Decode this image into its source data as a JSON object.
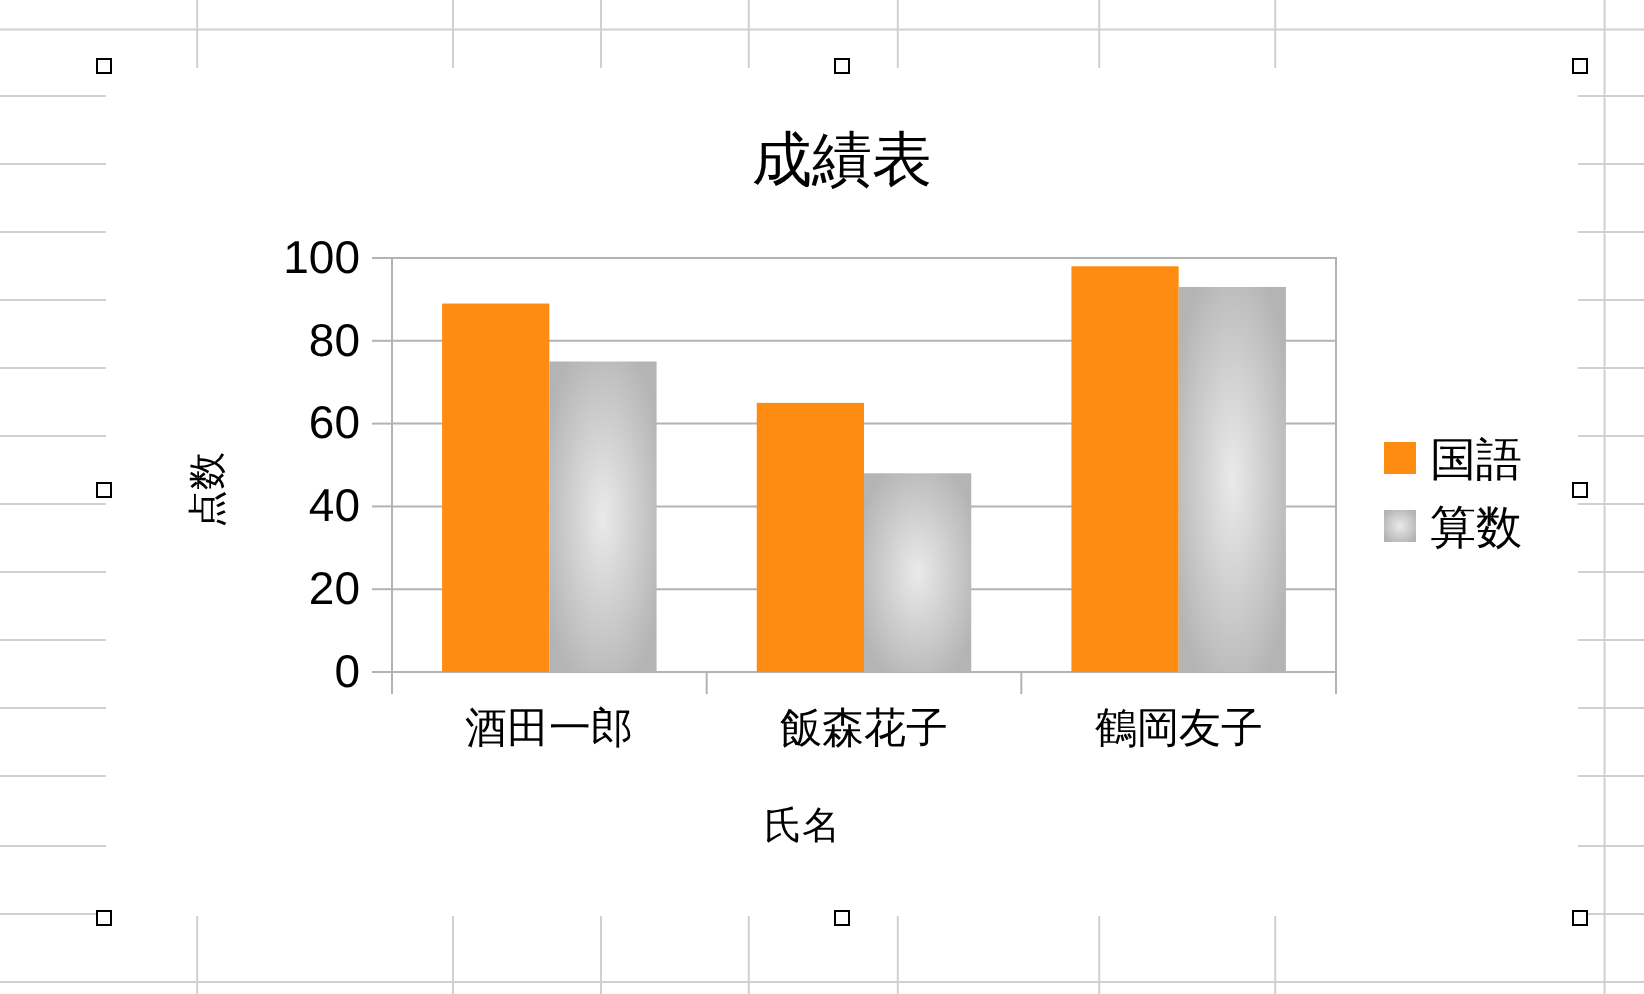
{
  "chart_data": {
    "type": "bar",
    "title": "成績表",
    "xlabel": "氏名",
    "ylabel": "点数",
    "categories": [
      "酒田一郎",
      "飯森花子",
      "鶴岡友子"
    ],
    "series": [
      {
        "name": "国語",
        "color": "#ff8c12",
        "values": [
          89,
          65,
          98
        ]
      },
      {
        "name": "算数",
        "color": "#b4b4b4",
        "values": [
          75,
          48,
          93
        ]
      }
    ],
    "ylim": [
      0,
      100
    ],
    "yticks": [
      0,
      20,
      40,
      60,
      80,
      100
    ],
    "grid": "y",
    "legend": "right"
  }
}
